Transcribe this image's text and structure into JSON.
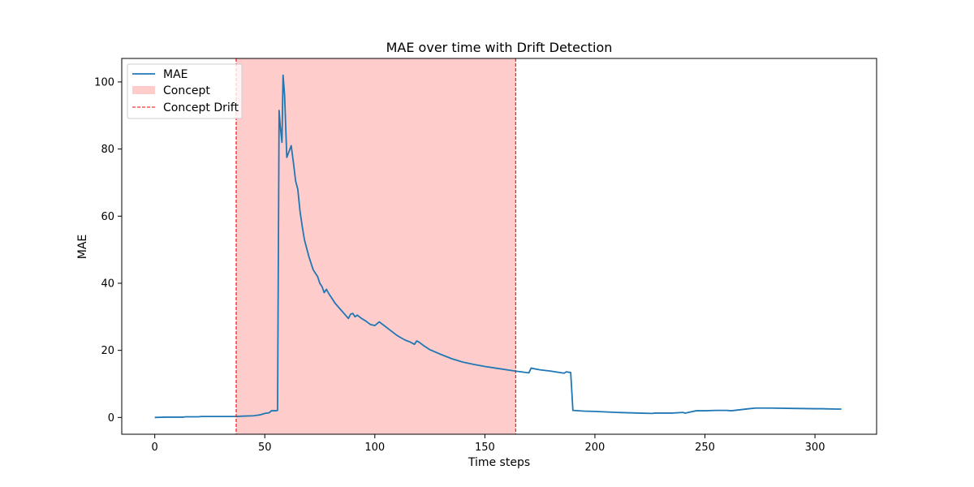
{
  "chart_data": {
    "type": "line",
    "title": "MAE over time with Drift Detection",
    "xlabel": "Time steps",
    "ylabel": "MAE",
    "xlim": [
      -15,
      328
    ],
    "ylim": [
      -5,
      107
    ],
    "xticks": [
      0,
      50,
      100,
      150,
      200,
      250,
      300
    ],
    "yticks": [
      0,
      20,
      40,
      60,
      80,
      100
    ],
    "grid": false,
    "legend_position": "upper-left",
    "legend": [
      "MAE",
      "Concept",
      "Concept Drift"
    ],
    "colors": {
      "line": "#1f77b4",
      "concept_fill": "#ffcccc",
      "drift_line": "#ff0000",
      "axes": "#000000"
    },
    "concept_region": {
      "label": "Concept",
      "x_start": 37,
      "x_end": 164
    },
    "drift_lines": {
      "label": "Concept Drift",
      "x": [
        37,
        164
      ]
    },
    "series": [
      {
        "name": "MAE",
        "x": [
          0,
          5,
          10,
          13,
          14,
          20,
          21,
          30,
          37,
          40,
          45,
          48,
          50,
          52,
          53,
          55,
          55.8,
          56.5,
          57,
          57.8,
          58.3,
          59,
          60,
          62,
          63,
          64,
          65,
          66,
          67,
          68,
          70,
          72,
          73,
          74,
          75,
          76,
          77,
          78,
          79,
          80,
          82,
          84,
          86,
          88,
          89,
          90,
          91,
          92,
          93,
          94,
          96,
          98,
          100,
          102,
          103,
          104,
          106,
          108,
          110,
          112,
          114,
          116,
          118,
          119,
          120,
          122,
          125,
          130,
          135,
          140,
          145,
          150,
          155,
          160,
          164,
          170,
          171,
          175,
          180,
          185,
          186,
          187,
          189,
          190,
          195,
          200,
          210,
          220,
          226,
          227,
          230,
          235,
          240,
          241,
          246,
          250,
          255,
          260,
          262,
          270,
          273,
          280,
          290,
          300,
          303,
          310,
          312
        ],
        "values": [
          0,
          0.1,
          0.1,
          0.1,
          0.2,
          0.2,
          0.3,
          0.3,
          0.3,
          0.4,
          0.5,
          0.8,
          1.2,
          1.4,
          2.0,
          2.0,
          2.1,
          91.5,
          87,
          82,
          102,
          96,
          77.5,
          81,
          76,
          70.5,
          68,
          61.5,
          57,
          53,
          48,
          44,
          43,
          42,
          40,
          39,
          37.2,
          38.2,
          37,
          36,
          34,
          32.5,
          31,
          29.5,
          30.8,
          31,
          30,
          30.5,
          30,
          29.5,
          28.7,
          27.7,
          27.4,
          28.5,
          28,
          27.5,
          26.5,
          25.5,
          24.5,
          23.7,
          23,
          22.5,
          21.8,
          22.8,
          22.5,
          21.5,
          20.2,
          18.8,
          17.5,
          16.5,
          15.8,
          15.2,
          14.7,
          14.2,
          13.8,
          13.3,
          14.7,
          14.2,
          13.8,
          13.3,
          13.2,
          13.6,
          13.4,
          2.1,
          1.9,
          1.8,
          1.5,
          1.3,
          1.2,
          1.3,
          1.3,
          1.3,
          1.5,
          1.3,
          2.0,
          2.0,
          2.1,
          2.1,
          2.0,
          2.6,
          2.8,
          2.8,
          2.7,
          2.6,
          2.6,
          2.5,
          2.5
        ]
      }
    ]
  }
}
